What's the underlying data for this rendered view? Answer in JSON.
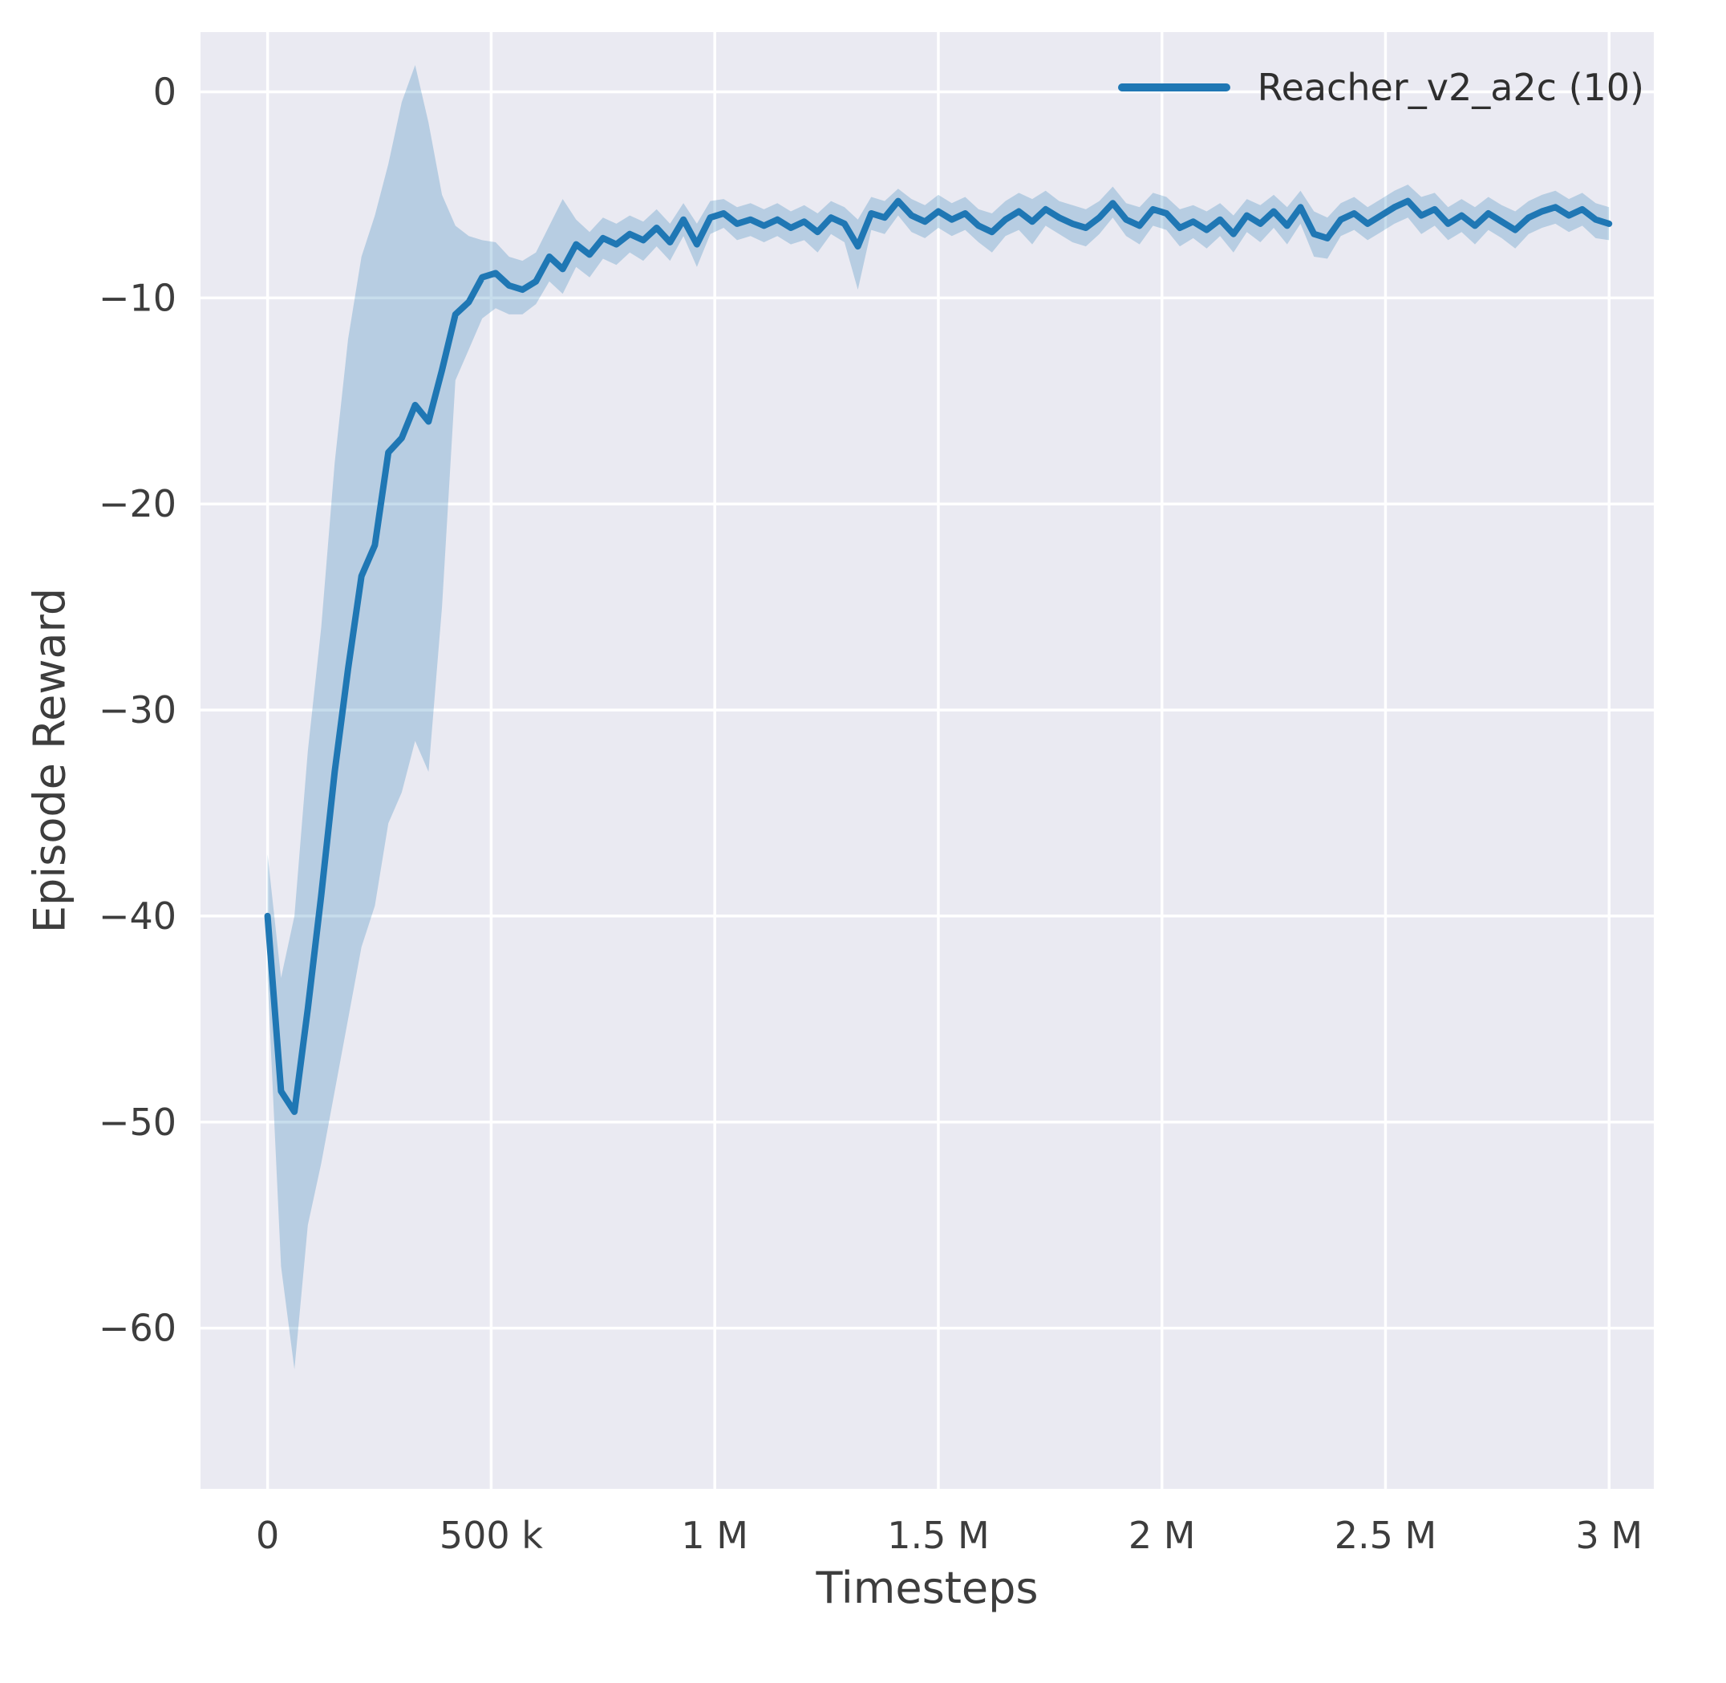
{
  "chart_data": {
    "type": "line",
    "title": "",
    "xlabel": "Timesteps",
    "ylabel": "Episode Reward",
    "legend_position": "upper right",
    "grid": true,
    "x_unit": "timesteps, stored in thousands",
    "xlim_k": [
      -150,
      3100
    ],
    "ylim": [
      -67.8,
      2.9
    ],
    "x_ticks": [
      {
        "v": 0,
        "label": "0"
      },
      {
        "v": 500,
        "label": "500 k"
      },
      {
        "v": 1000,
        "label": "1 M"
      },
      {
        "v": 1500,
        "label": "1.5 M"
      },
      {
        "v": 2000,
        "label": "2 M"
      },
      {
        "v": 2500,
        "label": "2.5 M"
      },
      {
        "v": 3000,
        "label": "3 M"
      }
    ],
    "y_ticks": [
      {
        "v": 0,
        "label": "0"
      },
      {
        "v": -10,
        "label": "−10"
      },
      {
        "v": -20,
        "label": "−20"
      },
      {
        "v": -30,
        "label": "−30"
      },
      {
        "v": -40,
        "label": "−40"
      },
      {
        "v": -50,
        "label": "−50"
      },
      {
        "v": -60,
        "label": "−60"
      }
    ],
    "colors": {
      "line": "#1f77b4",
      "band": "#1f77b4",
      "band_opacity": 0.25,
      "plot_bg": "#eaeaf2",
      "grid": "#ffffff",
      "text": "#3d3d3d"
    },
    "series": [
      {
        "name": "Reacher_v2_a2c (10)",
        "x_k": [
          0,
          30,
          60,
          90,
          120,
          150,
          180,
          210,
          240,
          270,
          300,
          330,
          360,
          390,
          420,
          450,
          480,
          510,
          540,
          570,
          600,
          630,
          660,
          690,
          720,
          750,
          780,
          810,
          840,
          870,
          900,
          930,
          960,
          990,
          1020,
          1050,
          1080,
          1110,
          1140,
          1170,
          1200,
          1230,
          1260,
          1290,
          1320,
          1350,
          1380,
          1410,
          1440,
          1470,
          1500,
          1530,
          1560,
          1590,
          1620,
          1650,
          1680,
          1710,
          1740,
          1770,
          1800,
          1830,
          1860,
          1890,
          1920,
          1950,
          1980,
          2010,
          2040,
          2070,
          2100,
          2130,
          2160,
          2190,
          2220,
          2250,
          2280,
          2310,
          2340,
          2370,
          2400,
          2430,
          2460,
          2490,
          2520,
          2550,
          2580,
          2610,
          2640,
          2670,
          2700,
          2730,
          2760,
          2790,
          2820,
          2850,
          2880,
          2910,
          2940,
          2970,
          3000
        ],
        "mean": [
          -40.0,
          -48.5,
          -49.5,
          -44.5,
          -39.0,
          -33.0,
          -28.0,
          -23.5,
          -22.0,
          -17.5,
          -16.8,
          -15.2,
          -16.0,
          -13.5,
          -10.8,
          -10.2,
          -9.0,
          -8.8,
          -9.4,
          -9.6,
          -9.2,
          -8.0,
          -8.6,
          -7.4,
          -7.9,
          -7.1,
          -7.4,
          -6.9,
          -7.2,
          -6.6,
          -7.3,
          -6.2,
          -7.4,
          -6.1,
          -5.9,
          -6.4,
          -6.2,
          -6.5,
          -6.2,
          -6.6,
          -6.3,
          -6.8,
          -6.1,
          -6.4,
          -7.5,
          -5.9,
          -6.1,
          -5.3,
          -6.0,
          -6.3,
          -5.8,
          -6.2,
          -5.9,
          -6.5,
          -6.8,
          -6.2,
          -5.8,
          -6.3,
          -5.7,
          -6.1,
          -6.4,
          -6.6,
          -6.1,
          -5.4,
          -6.2,
          -6.5,
          -5.7,
          -5.9,
          -6.6,
          -6.3,
          -6.7,
          -6.2,
          -6.9,
          -6.0,
          -6.4,
          -5.8,
          -6.5,
          -5.6,
          -6.9,
          -7.1,
          -6.2,
          -5.9,
          -6.4,
          -6.0,
          -5.6,
          -5.3,
          -6.0,
          -5.7,
          -6.4,
          -6.0,
          -6.5,
          -5.9,
          -6.3,
          -6.7,
          -6.1,
          -5.8,
          -5.6,
          -6.0,
          -5.7,
          -6.2,
          -6.4
        ],
        "lower": [
          -43,
          -57,
          -62,
          -55,
          -52,
          -48.5,
          -45,
          -41.5,
          -39.5,
          -35.5,
          -34,
          -31.5,
          -33,
          -25,
          -14,
          -12.5,
          -11,
          -10.5,
          -10.8,
          -10.8,
          -10.3,
          -9.2,
          -9.8,
          -8.5,
          -9.0,
          -8.1,
          -8.4,
          -7.8,
          -8.2,
          -7.5,
          -8.2,
          -7.0,
          -8.5,
          -6.9,
          -6.6,
          -7.2,
          -7.0,
          -7.3,
          -7.0,
          -7.4,
          -7.2,
          -7.8,
          -6.9,
          -7.3,
          -9.6,
          -6.7,
          -6.9,
          -6.0,
          -6.8,
          -7.1,
          -6.6,
          -7.0,
          -6.7,
          -7.3,
          -7.8,
          -7.0,
          -6.7,
          -7.4,
          -6.5,
          -6.9,
          -7.3,
          -7.5,
          -6.9,
          -6.1,
          -7.0,
          -7.4,
          -6.5,
          -6.7,
          -7.5,
          -7.1,
          -7.6,
          -7.0,
          -7.8,
          -6.8,
          -7.3,
          -6.6,
          -7.4,
          -6.4,
          -8.0,
          -8.1,
          -7.0,
          -6.7,
          -7.2,
          -6.8,
          -6.4,
          -6.1,
          -6.9,
          -6.5,
          -7.2,
          -6.8,
          -7.4,
          -6.7,
          -7.1,
          -7.6,
          -6.9,
          -6.6,
          -6.4,
          -6.8,
          -6.5,
          -7.1,
          -7.2
        ],
        "upper": [
          -37,
          -43,
          -40,
          -32,
          -26,
          -18,
          -12,
          -8,
          -6,
          -3.5,
          -0.5,
          1.3,
          -1.5,
          -5,
          -6.5,
          -7,
          -7.2,
          -7.3,
          -8.0,
          -8.2,
          -7.8,
          -6.5,
          -5.2,
          -6.2,
          -6.8,
          -6.1,
          -6.4,
          -6.0,
          -6.3,
          -5.7,
          -6.4,
          -5.4,
          -6.4,
          -5.3,
          -5.2,
          -5.6,
          -5.4,
          -5.7,
          -5.4,
          -5.8,
          -5.5,
          -5.9,
          -5.3,
          -5.6,
          -6.2,
          -5.1,
          -5.3,
          -4.7,
          -5.2,
          -5.5,
          -5.0,
          -5.4,
          -5.1,
          -5.7,
          -5.9,
          -5.3,
          -4.9,
          -5.2,
          -4.8,
          -5.3,
          -5.5,
          -5.7,
          -5.3,
          -4.6,
          -5.4,
          -5.6,
          -4.9,
          -5.1,
          -5.7,
          -5.5,
          -5.8,
          -5.4,
          -6.0,
          -5.2,
          -5.5,
          -5.0,
          -5.6,
          -4.8,
          -5.8,
          -6.1,
          -5.4,
          -5.1,
          -5.6,
          -5.2,
          -4.8,
          -4.5,
          -5.1,
          -4.9,
          -5.6,
          -5.2,
          -5.6,
          -5.1,
          -5.5,
          -5.8,
          -5.3,
          -5.0,
          -4.8,
          -5.2,
          -4.9,
          -5.4,
          -5.6
        ]
      }
    ]
  }
}
